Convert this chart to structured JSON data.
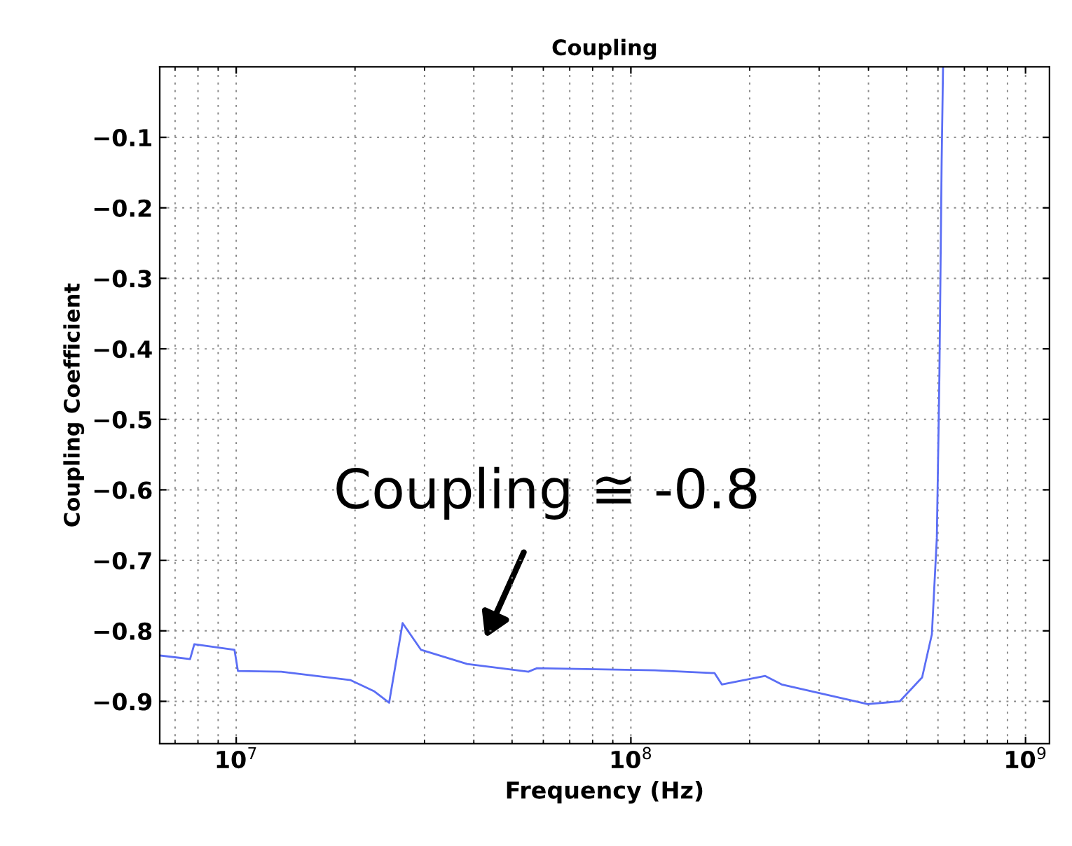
{
  "chart_data": {
    "type": "line",
    "title": "Coupling",
    "xlabel": "Frequency (Hz)",
    "ylabel": "Coupling Coefficient",
    "log": "x",
    "grid": true,
    "xlim": [
      6400000.0,
      1150000000.0
    ],
    "ylim": [
      -0.96,
      0
    ],
    "xticks": [
      {
        "value": 10000000,
        "label": "10$^{7}$"
      },
      {
        "value": 100000000,
        "label": "10$^{8}$"
      },
      {
        "value": 1000000000,
        "label": "10$^{9}$"
      }
    ],
    "yticks": [
      -0.1,
      -0.2,
      -0.3,
      -0.4,
      -0.5,
      -0.6,
      -0.7,
      -0.8,
      -0.9
    ],
    "annotations": [
      "Coupling ≅ -0.8"
    ],
    "series": [
      {
        "color": "#5b6ef5",
        "x": [
          6400000.0,
          7640000.0,
          7830000.0,
          9900000.0,
          10100000.0,
          13000000.0,
          19500000.0,
          22400000.0,
          24400000.0,
          26400000.0,
          29400000.0,
          38500000.0,
          55000000.0,
          57800000.0,
          115000000.0,
          163000000.0,
          170000000.0,
          219000000.0,
          241000000.0,
          398000000.0,
          480000000.0,
          547000000.0,
          579000000.0,
          596000000.0,
          605000000.0,
          613000000.0,
          618000000.0
        ],
        "values": [
          -0.835,
          -0.84,
          -0.819,
          -0.827,
          -0.857,
          -0.858,
          -0.87,
          -0.886,
          -0.902,
          -0.789,
          -0.827,
          -0.847,
          -0.858,
          -0.853,
          -0.856,
          -0.86,
          -0.876,
          -0.864,
          -0.876,
          -0.904,
          -0.9,
          -0.866,
          -0.805,
          -0.668,
          -0.439,
          -0.134,
          0
        ]
      }
    ]
  }
}
